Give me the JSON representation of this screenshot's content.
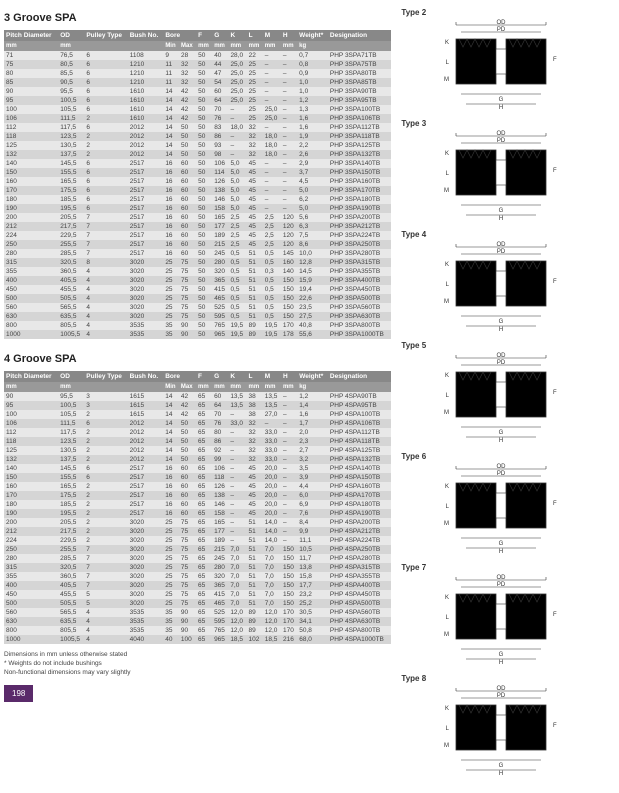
{
  "section1": {
    "title": "3 Groove SPA",
    "headers": [
      "Pitch Diameter",
      "OD",
      "Pulley Type",
      "Bush No.",
      "Bore Min",
      "Bore Max",
      "F",
      "G",
      "K",
      "L",
      "M",
      "H",
      "Weight*",
      "Designation"
    ],
    "units": [
      "mm",
      "mm",
      "",
      "",
      "mm",
      "mm",
      "mm",
      "mm",
      "mm",
      "mm",
      "mm",
      "mm",
      "kg",
      ""
    ],
    "rows": [
      [
        "71",
        "76,5",
        "6",
        "1108",
        "9",
        "28",
        "50",
        "40",
        "28,0",
        "22",
        "–",
        "–",
        "0,7",
        "PHP 3SPA71TB"
      ],
      [
        "75",
        "80,5",
        "6",
        "1210",
        "11",
        "32",
        "50",
        "44",
        "25,0",
        "25",
        "–",
        "–",
        "0,8",
        "PHP 3SPA75TB"
      ],
      [
        "80",
        "85,5",
        "6",
        "1210",
        "11",
        "32",
        "50",
        "47",
        "25,0",
        "25",
        "–",
        "–",
        "0,9",
        "PHP 3SPA80TB"
      ],
      [
        "85",
        "90,5",
        "6",
        "1210",
        "11",
        "32",
        "50",
        "54",
        "25,0",
        "25",
        "–",
        "–",
        "1,0",
        "PHP 3SPA85TB"
      ],
      [
        "90",
        "95,5",
        "6",
        "1610",
        "14",
        "42",
        "50",
        "60",
        "25,0",
        "25",
        "–",
        "–",
        "1,0",
        "PHP 3SPA90TB"
      ],
      [
        "95",
        "100,5",
        "6",
        "1610",
        "14",
        "42",
        "50",
        "64",
        "25,0",
        "25",
        "–",
        "–",
        "1,2",
        "PHP 3SPA95TB"
      ],
      [
        "100",
        "105,5",
        "6",
        "1610",
        "14",
        "42",
        "50",
        "70",
        "–",
        "25",
        "25,0",
        "–",
        "1,3",
        "PHP 3SPA100TB"
      ],
      [
        "106",
        "111,5",
        "2",
        "1610",
        "14",
        "42",
        "50",
        "76",
        "–",
        "25",
        "25,0",
        "–",
        "1,6",
        "PHP 3SPA106TB"
      ],
      [
        "112",
        "117,5",
        "6",
        "2012",
        "14",
        "50",
        "50",
        "83",
        "18,0",
        "32",
        "–",
        "–",
        "1,6",
        "PHP 3SPA112TB"
      ],
      [
        "118",
        "123,5",
        "2",
        "2012",
        "14",
        "50",
        "50",
        "86",
        "–",
        "32",
        "18,0",
        "–",
        "1,9",
        "PHP 3SPA118TB"
      ],
      [
        "125",
        "130,5",
        "2",
        "2012",
        "14",
        "50",
        "50",
        "93",
        "–",
        "32",
        "18,0",
        "–",
        "2,2",
        "PHP 3SPA125TB"
      ],
      [
        "132",
        "137,5",
        "2",
        "2012",
        "14",
        "50",
        "50",
        "98",
        "–",
        "32",
        "18,0",
        "–",
        "2,6",
        "PHP 3SPA132TB"
      ],
      [
        "140",
        "145,5",
        "6",
        "2517",
        "16",
        "60",
        "50",
        "106",
        "5,0",
        "45",
        "–",
        "–",
        "2,9",
        "PHP 3SPA140TB"
      ],
      [
        "150",
        "155,5",
        "6",
        "2517",
        "16",
        "60",
        "50",
        "114",
        "5,0",
        "45",
        "–",
        "–",
        "3,7",
        "PHP 3SPA150TB"
      ],
      [
        "160",
        "165,5",
        "6",
        "2517",
        "16",
        "60",
        "50",
        "126",
        "5,0",
        "45",
        "–",
        "–",
        "4,5",
        "PHP 3SPA160TB"
      ],
      [
        "170",
        "175,5",
        "6",
        "2517",
        "16",
        "60",
        "50",
        "138",
        "5,0",
        "45",
        "–",
        "–",
        "5,0",
        "PHP 3SPA170TB"
      ],
      [
        "180",
        "185,5",
        "6",
        "2517",
        "16",
        "60",
        "50",
        "146",
        "5,0",
        "45",
        "–",
        "–",
        "6,2",
        "PHP 3SPA180TB"
      ],
      [
        "190",
        "195,5",
        "6",
        "2517",
        "16",
        "60",
        "50",
        "158",
        "5,0",
        "45",
        "–",
        "–",
        "5,0",
        "PHP 3SPA190TB"
      ],
      [
        "200",
        "205,5",
        "7",
        "2517",
        "16",
        "60",
        "50",
        "165",
        "2,5",
        "45",
        "2,5",
        "120",
        "5,6",
        "PHP 3SPA200TB"
      ],
      [
        "212",
        "217,5",
        "7",
        "2517",
        "16",
        "60",
        "50",
        "177",
        "2,5",
        "45",
        "2,5",
        "120",
        "6,3",
        "PHP 3SPA212TB"
      ],
      [
        "224",
        "229,5",
        "7",
        "2517",
        "16",
        "60",
        "50",
        "189",
        "2,5",
        "45",
        "2,5",
        "120",
        "7,5",
        "PHP 3SPA224TB"
      ],
      [
        "250",
        "255,5",
        "7",
        "2517",
        "16",
        "60",
        "50",
        "215",
        "2,5",
        "45",
        "2,5",
        "120",
        "8,6",
        "PHP 3SPA250TB"
      ],
      [
        "280",
        "285,5",
        "7",
        "2517",
        "16",
        "60",
        "50",
        "245",
        "0,5",
        "51",
        "0,5",
        "145",
        "10,0",
        "PHP 3SPA280TB"
      ],
      [
        "315",
        "320,5",
        "8",
        "3020",
        "25",
        "75",
        "50",
        "280",
        "0,5",
        "51",
        "0,5",
        "160",
        "12,8",
        "PHP 3SPA315TB"
      ],
      [
        "355",
        "360,5",
        "4",
        "3020",
        "25",
        "75",
        "50",
        "320",
        "0,5",
        "51",
        "0,3",
        "140",
        "14,5",
        "PHP 3SPA355TB"
      ],
      [
        "400",
        "405,5",
        "4",
        "3020",
        "25",
        "75",
        "50",
        "365",
        "0,5",
        "51",
        "0,5",
        "150",
        "15,9",
        "PHP 3SPA400TB"
      ],
      [
        "450",
        "455,5",
        "4",
        "3020",
        "25",
        "75",
        "50",
        "415",
        "0,5",
        "51",
        "0,5",
        "150",
        "19,4",
        "PHP 3SPA450TB"
      ],
      [
        "500",
        "505,5",
        "4",
        "3020",
        "25",
        "75",
        "50",
        "465",
        "0,5",
        "51",
        "0,5",
        "150",
        "22,6",
        "PHP 3SPA500TB"
      ],
      [
        "560",
        "565,5",
        "4",
        "3020",
        "25",
        "75",
        "50",
        "525",
        "0,5",
        "51",
        "0,5",
        "150",
        "23,5",
        "PHP 3SPA560TB"
      ],
      [
        "630",
        "635,5",
        "4",
        "3020",
        "25",
        "75",
        "50",
        "595",
        "0,5",
        "51",
        "0,5",
        "150",
        "27,5",
        "PHP 3SPA630TB"
      ],
      [
        "800",
        "805,5",
        "4",
        "3535",
        "35",
        "90",
        "50",
        "765",
        "19,5",
        "89",
        "19,5",
        "170",
        "40,8",
        "PHP 3SPA800TB"
      ],
      [
        "1000",
        "1005,5",
        "4",
        "3535",
        "35",
        "90",
        "50",
        "965",
        "19,5",
        "89",
        "19,5",
        "178",
        "55,6",
        "PHP 3SPA1000TB"
      ]
    ]
  },
  "section2": {
    "title": "4 Groove SPA",
    "headers": [
      "Pitch Diameter",
      "OD",
      "Pulley Type",
      "Bush No.",
      "Bore Min",
      "Bore Max",
      "F",
      "G",
      "K",
      "L",
      "M",
      "H",
      "Weight*",
      "Designation"
    ],
    "units": [
      "mm",
      "mm",
      "",
      "",
      "mm",
      "mm",
      "mm",
      "mm",
      "mm",
      "mm",
      "mm",
      "mm",
      "kg",
      ""
    ],
    "rows": [
      [
        "90",
        "95,5",
        "3",
        "1615",
        "14",
        "42",
        "65",
        "60",
        "13,5",
        "38",
        "13,5",
        "–",
        "1,2",
        "PHP 4SPA90TB"
      ],
      [
        "95",
        "100,5",
        "3",
        "1615",
        "14",
        "42",
        "65",
        "64",
        "13,5",
        "38",
        "13,5",
        "–",
        "1,4",
        "PHP 4SPA95TB"
      ],
      [
        "100",
        "105,5",
        "2",
        "1615",
        "14",
        "42",
        "65",
        "70",
        "–",
        "38",
        "27,0",
        "–",
        "1,6",
        "PHP 4SPA100TB"
      ],
      [
        "106",
        "111,5",
        "6",
        "2012",
        "14",
        "50",
        "65",
        "76",
        "33,0",
        "32",
        "–",
        "–",
        "1,7",
        "PHP 4SPA106TB"
      ],
      [
        "112",
        "117,5",
        "2",
        "2012",
        "14",
        "50",
        "65",
        "80",
        "–",
        "32",
        "33,0",
        "–",
        "2,0",
        "PHP 4SPA112TB"
      ],
      [
        "118",
        "123,5",
        "2",
        "2012",
        "14",
        "50",
        "65",
        "86",
        "–",
        "32",
        "33,0",
        "–",
        "2,3",
        "PHP 4SPA118TB"
      ],
      [
        "125",
        "130,5",
        "2",
        "2012",
        "14",
        "50",
        "65",
        "92",
        "–",
        "32",
        "33,0",
        "–",
        "2,7",
        "PHP 4SPA125TB"
      ],
      [
        "132",
        "137,5",
        "2",
        "2012",
        "14",
        "50",
        "65",
        "99",
        "–",
        "32",
        "33,0",
        "–",
        "3,2",
        "PHP 4SPA132TB"
      ],
      [
        "140",
        "145,5",
        "6",
        "2517",
        "16",
        "60",
        "65",
        "106",
        "–",
        "45",
        "20,0",
        "–",
        "3,5",
        "PHP 4SPA140TB"
      ],
      [
        "150",
        "155,5",
        "6",
        "2517",
        "16",
        "60",
        "65",
        "118",
        "–",
        "45",
        "20,0",
        "–",
        "3,9",
        "PHP 4SPA150TB"
      ],
      [
        "160",
        "165,5",
        "2",
        "2517",
        "16",
        "60",
        "65",
        "126",
        "–",
        "45",
        "20,0",
        "–",
        "4,4",
        "PHP 4SPA160TB"
      ],
      [
        "170",
        "175,5",
        "2",
        "2517",
        "16",
        "60",
        "65",
        "138",
        "–",
        "45",
        "20,0",
        "–",
        "6,0",
        "PHP 4SPA170TB"
      ],
      [
        "180",
        "185,5",
        "2",
        "2517",
        "16",
        "60",
        "65",
        "146",
        "–",
        "45",
        "20,0",
        "–",
        "6,9",
        "PHP 4SPA180TB"
      ],
      [
        "190",
        "195,5",
        "2",
        "2517",
        "16",
        "60",
        "65",
        "158",
        "–",
        "45",
        "20,0",
        "–",
        "7,6",
        "PHP 4SPA190TB"
      ],
      [
        "200",
        "205,5",
        "2",
        "3020",
        "25",
        "75",
        "65",
        "165",
        "–",
        "51",
        "14,0",
        "–",
        "8,4",
        "PHP 4SPA200TB"
      ],
      [
        "212",
        "217,5",
        "2",
        "3020",
        "25",
        "75",
        "65",
        "177",
        "–",
        "51",
        "14,0",
        "–",
        "9,9",
        "PHP 4SPA212TB"
      ],
      [
        "224",
        "229,5",
        "2",
        "3020",
        "25",
        "75",
        "65",
        "189",
        "–",
        "51",
        "14,0",
        "–",
        "11,1",
        "PHP 4SPA224TB"
      ],
      [
        "250",
        "255,5",
        "7",
        "3020",
        "25",
        "75",
        "65",
        "215",
        "7,0",
        "51",
        "7,0",
        "150",
        "10,5",
        "PHP 4SPA250TB"
      ],
      [
        "280",
        "285,5",
        "7",
        "3020",
        "25",
        "75",
        "65",
        "245",
        "7,0",
        "51",
        "7,0",
        "150",
        "11,7",
        "PHP 4SPA280TB"
      ],
      [
        "315",
        "320,5",
        "7",
        "3020",
        "25",
        "75",
        "65",
        "280",
        "7,0",
        "51",
        "7,0",
        "150",
        "13,8",
        "PHP 4SPA315TB"
      ],
      [
        "355",
        "360,5",
        "7",
        "3020",
        "25",
        "75",
        "65",
        "320",
        "7,0",
        "51",
        "7,0",
        "150",
        "15,8",
        "PHP 4SPA355TB"
      ],
      [
        "400",
        "405,5",
        "7",
        "3020",
        "25",
        "75",
        "65",
        "365",
        "7,0",
        "51",
        "7,0",
        "150",
        "17,7",
        "PHP 4SPA400TB"
      ],
      [
        "450",
        "455,5",
        "5",
        "3020",
        "25",
        "75",
        "65",
        "415",
        "7,0",
        "51",
        "7,0",
        "150",
        "23,2",
        "PHP 4SPA450TB"
      ],
      [
        "500",
        "505,5",
        "5",
        "3020",
        "25",
        "75",
        "65",
        "465",
        "7,0",
        "51",
        "7,0",
        "150",
        "25,2",
        "PHP 4SPA500TB"
      ],
      [
        "560",
        "565,5",
        "4",
        "3535",
        "35",
        "90",
        "65",
        "525",
        "12,0",
        "89",
        "12,0",
        "170",
        "30,5",
        "PHP 4SPA560TB"
      ],
      [
        "630",
        "635,5",
        "4",
        "3535",
        "35",
        "90",
        "65",
        "595",
        "12,0",
        "89",
        "12,0",
        "170",
        "34,1",
        "PHP 4SPA630TB"
      ],
      [
        "800",
        "805,5",
        "4",
        "3535",
        "35",
        "90",
        "65",
        "765",
        "12,0",
        "89",
        "12,0",
        "170",
        "50,8",
        "PHP 4SPA800TB"
      ],
      [
        "1000",
        "1005,5",
        "4",
        "4040",
        "40",
        "100",
        "65",
        "965",
        "18,5",
        "102",
        "18,5",
        "216",
        "68,0",
        "PHP 4SPA1000TB"
      ]
    ]
  },
  "notes": {
    "l1": "Dimensions in mm unless otherwise stated",
    "l2": "* Weights do not include bushings",
    "l3": "Non-functional dimensions may vary slightly"
  },
  "pagenum": "198",
  "types": [
    "Type 2",
    "Type 3",
    "Type 4",
    "Type 5",
    "Type 6",
    "Type 7",
    "Type 8"
  ],
  "dimlabels": {
    "od": "OD",
    "pd": "PD",
    "f": "F",
    "g": "G",
    "h": "H",
    "k": "K",
    "l": "L",
    "m": "M"
  },
  "colors": {
    "header": "#888888",
    "subheader": "#999999",
    "odd": "#e8e8e8",
    "even": "#d5d5d5",
    "hatch": "#7a9a4a",
    "outline": "#333333",
    "pgnum": "#5a2a6a"
  }
}
